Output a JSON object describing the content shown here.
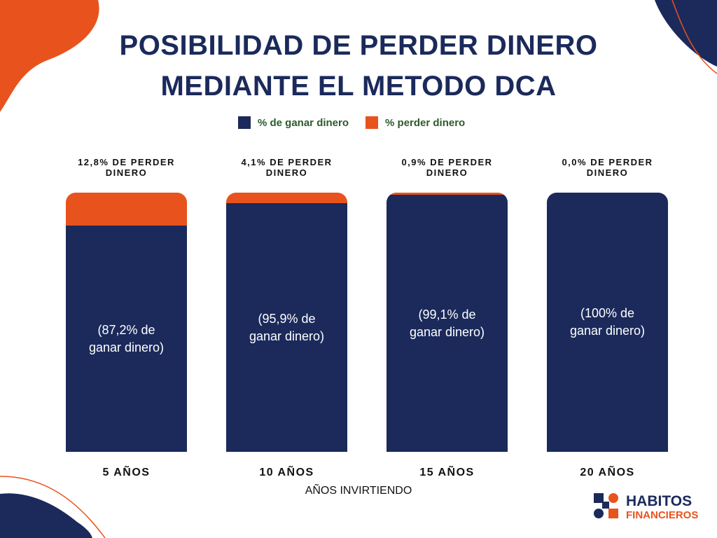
{
  "chart_data": {
    "type": "stacked-bar",
    "title": "POSIBILIDAD DE PERDER DINERO MEDIANTE EL METODO DCA",
    "categories": [
      "5 AÑOS",
      "10 AÑOS",
      "15 AÑOS",
      "20 AÑOS"
    ],
    "x_label": "AÑOS INVIRTIENDO",
    "series": [
      {
        "name": "% de ganar dinero",
        "color": "#1b2a5b",
        "values": [
          87.2,
          95.9,
          99.1,
          100
        ],
        "value_labels": [
          "(87,2% de ganar dinero)",
          "(95,9% de ganar dinero)",
          "(99,1% de ganar dinero)",
          "(100% de ganar dinero)"
        ]
      },
      {
        "name": "% perder dinero",
        "color": "#e8531d",
        "values": [
          12.8,
          4.1,
          0.9,
          0.0
        ],
        "value_labels": [
          "12,8% DE PERDER DINERO",
          "4,1% DE PERDER DINERO",
          "0,9% DE PERDER DINERO",
          "0,0% DE PERDER DINERO"
        ]
      }
    ]
  },
  "logo": {
    "line1": "HABITOS",
    "line2": "FINANCIEROS"
  }
}
